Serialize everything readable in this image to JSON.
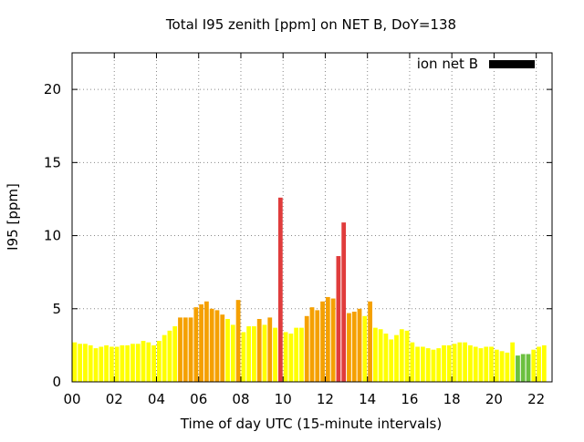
{
  "chart_data": {
    "type": "bar",
    "title": "Total I95 zenith [ppm] on NET B, DoY=138",
    "xlabel": "Time of day UTC (15-minute intervals)",
    "ylabel": "I95 [ppm]",
    "x_unit": "hours UTC",
    "bin_width_hours": 0.25,
    "xlim": [
      0,
      22.75
    ],
    "ylim": [
      0,
      22.5
    ],
    "xticks": [
      0,
      2,
      4,
      6,
      8,
      10,
      12,
      14,
      16,
      18,
      20,
      22
    ],
    "xtick_labels": [
      "00",
      "02",
      "04",
      "06",
      "08",
      "10",
      "12",
      "14",
      "16",
      "18",
      "20",
      "22"
    ],
    "yticks": [
      0,
      5,
      10,
      15,
      20
    ],
    "ytick_labels": [
      "0",
      "5",
      "10",
      "15",
      "20"
    ],
    "grid": true,
    "grid_style": "dotted",
    "legend": {
      "label": "ion net B",
      "color": "#000000",
      "placement": "top-right"
    },
    "colors": {
      "yellow": "#ffff00",
      "orange": "#f5a000",
      "red": "#e03c3c",
      "green": "#6cc040"
    },
    "values": [
      2.7,
      2.6,
      2.6,
      2.5,
      2.3,
      2.4,
      2.5,
      2.4,
      2.4,
      2.5,
      2.5,
      2.6,
      2.6,
      2.8,
      2.7,
      2.5,
      2.8,
      3.2,
      3.5,
      3.8,
      4.4,
      4.4,
      4.4,
      5.1,
      5.3,
      5.5,
      5.0,
      4.9,
      4.6,
      4.3,
      3.9,
      5.6,
      3.4,
      3.8,
      3.8,
      4.3,
      3.9,
      4.4,
      3.7,
      12.6,
      3.4,
      3.3,
      3.7,
      3.7,
      4.5,
      5.1,
      4.9,
      5.5,
      5.8,
      5.7,
      8.6,
      10.9,
      4.7,
      4.8,
      5.0,
      4.5,
      5.5,
      3.7,
      3.6,
      3.3,
      2.9,
      3.2,
      3.6,
      3.5,
      2.7,
      2.4,
      2.4,
      2.3,
      2.2,
      2.3,
      2.5,
      2.5,
      2.6,
      2.7,
      2.7,
      2.5,
      2.4,
      2.3,
      2.4,
      2.4,
      2.2,
      2.1,
      2.0,
      2.7,
      1.8,
      1.9,
      1.9,
      2.2,
      2.4,
      2.5
    ],
    "bar_colors": [
      "yellow",
      "yellow",
      "yellow",
      "yellow",
      "yellow",
      "yellow",
      "yellow",
      "yellow",
      "yellow",
      "yellow",
      "yellow",
      "yellow",
      "yellow",
      "yellow",
      "yellow",
      "yellow",
      "yellow",
      "yellow",
      "yellow",
      "yellow",
      "orange",
      "orange",
      "orange",
      "orange",
      "orange",
      "orange",
      "orange",
      "orange",
      "orange",
      "yellow",
      "yellow",
      "orange",
      "yellow",
      "yellow",
      "yellow",
      "orange",
      "yellow",
      "orange",
      "yellow",
      "red",
      "yellow",
      "yellow",
      "yellow",
      "yellow",
      "orange",
      "orange",
      "orange",
      "orange",
      "orange",
      "orange",
      "red",
      "red",
      "orange",
      "orange",
      "orange",
      "yellow",
      "orange",
      "yellow",
      "yellow",
      "yellow",
      "yellow",
      "yellow",
      "yellow",
      "yellow",
      "yellow",
      "yellow",
      "yellow",
      "yellow",
      "yellow",
      "yellow",
      "yellow",
      "yellow",
      "yellow",
      "yellow",
      "yellow",
      "yellow",
      "yellow",
      "yellow",
      "yellow",
      "yellow",
      "yellow",
      "yellow",
      "yellow",
      "yellow",
      "green",
      "green",
      "green",
      "yellow",
      "yellow",
      "yellow"
    ]
  }
}
